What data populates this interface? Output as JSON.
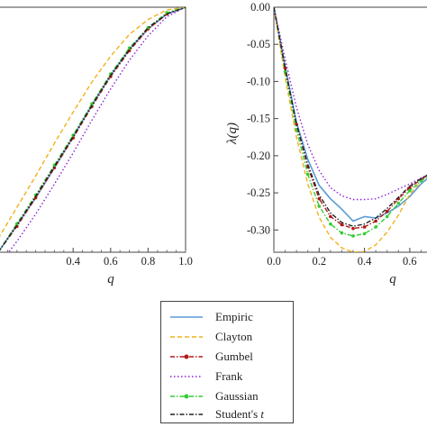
{
  "chart_data": [
    {
      "type": "line",
      "panel": "left",
      "xlabel": "q",
      "ylabel": "",
      "xlim": [
        0.0,
        1.0
      ],
      "ylim": [
        -0.18,
        0.0
      ],
      "xticks": [
        "0.4",
        "0.6",
        "0.8",
        "1.0"
      ],
      "series": [
        {
          "name": "Empiric",
          "color": "#5b9bd5",
          "style": "solid",
          "x": [
            0.0,
            0.1,
            0.2,
            0.3,
            0.4,
            0.5,
            0.6,
            0.7,
            0.8,
            0.9,
            1.0
          ],
          "y": [
            -0.18,
            -0.16,
            -0.14,
            -0.118,
            -0.095,
            -0.072,
            -0.05,
            -0.031,
            -0.016,
            -0.005,
            0.0
          ]
        },
        {
          "name": "Clayton",
          "color": "#f0b11b",
          "style": "dashed",
          "x": [
            0.0,
            0.1,
            0.2,
            0.3,
            0.4,
            0.5,
            0.6,
            0.7,
            0.8,
            0.9,
            1.0
          ],
          "y": [
            -0.17,
            -0.147,
            -0.124,
            -0.1,
            -0.077,
            -0.055,
            -0.036,
            -0.02,
            -0.009,
            -0.002,
            0.0
          ]
        },
        {
          "name": "Gumbel",
          "color": "#b01818",
          "style": "dash-dot-marker",
          "x": [
            0.0,
            0.1,
            0.2,
            0.3,
            0.4,
            0.5,
            0.6,
            0.7,
            0.8,
            0.9,
            1.0
          ],
          "y": [
            -0.18,
            -0.161,
            -0.14,
            -0.118,
            -0.096,
            -0.073,
            -0.051,
            -0.032,
            -0.016,
            -0.005,
            0.0
          ]
        },
        {
          "name": "Frank",
          "color": "#8b1fd6",
          "style": "dotted",
          "x": [
            0.0,
            0.1,
            0.2,
            0.3,
            0.4,
            0.5,
            0.6,
            0.7,
            0.8,
            0.9,
            1.0
          ],
          "y": [
            -0.19,
            -0.172,
            -0.152,
            -0.13,
            -0.107,
            -0.083,
            -0.06,
            -0.039,
            -0.021,
            -0.007,
            0.0
          ]
        },
        {
          "name": "Gaussian",
          "color": "#33cc33",
          "style": "dash-dot-marker",
          "x": [
            0.0,
            0.1,
            0.2,
            0.3,
            0.4,
            0.5,
            0.6,
            0.7,
            0.8,
            0.9,
            1.0
          ],
          "y": [
            -0.18,
            -0.159,
            -0.138,
            -0.116,
            -0.094,
            -0.071,
            -0.049,
            -0.03,
            -0.015,
            -0.004,
            0.0
          ]
        },
        {
          "name": "Student's t",
          "color": "#222222",
          "style": "dash-dot",
          "x": [
            0.0,
            0.1,
            0.2,
            0.3,
            0.4,
            0.5,
            0.6,
            0.7,
            0.8,
            0.9,
            1.0
          ],
          "y": [
            -0.18,
            -0.16,
            -0.139,
            -0.117,
            -0.095,
            -0.072,
            -0.05,
            -0.031,
            -0.015,
            -0.005,
            0.0
          ]
        }
      ]
    },
    {
      "type": "line",
      "panel": "right",
      "xlabel": "q",
      "ylabel": "λ(q)",
      "xlim": [
        0.0,
        0.7
      ],
      "ylim": [
        -0.33,
        0.0
      ],
      "yticks": [
        "0.00",
        "-0.05",
        "-0.10",
        "-0.15",
        "-0.20",
        "-0.25",
        "-0.30"
      ],
      "xticks": [
        "0.0",
        "0.2",
        "0.4",
        "0.6"
      ],
      "series": [
        {
          "name": "Empiric",
          "color": "#5b9bd5",
          "style": "solid",
          "x": [
            0.0,
            0.05,
            0.1,
            0.15,
            0.2,
            0.25,
            0.3,
            0.35,
            0.4,
            0.45,
            0.5,
            0.55,
            0.6,
            0.65,
            0.7
          ],
          "y": [
            0.0,
            -0.08,
            -0.155,
            -0.205,
            -0.24,
            -0.258,
            -0.272,
            -0.288,
            -0.282,
            -0.284,
            -0.277,
            -0.268,
            -0.255,
            -0.238,
            -0.225
          ]
        },
        {
          "name": "Clayton",
          "color": "#f0b11b",
          "style": "dashed",
          "x": [
            0.0,
            0.05,
            0.1,
            0.15,
            0.2,
            0.25,
            0.3,
            0.35,
            0.4,
            0.45,
            0.5,
            0.55,
            0.6,
            0.65,
            0.7
          ],
          "y": [
            0.0,
            -0.095,
            -0.175,
            -0.238,
            -0.283,
            -0.31,
            -0.324,
            -0.33,
            -0.329,
            -0.32,
            -0.303,
            -0.28,
            -0.252,
            -0.235,
            -0.222
          ]
        },
        {
          "name": "Gumbel",
          "color": "#b01818",
          "style": "dash-dot-marker",
          "x": [
            0.0,
            0.05,
            0.1,
            0.15,
            0.2,
            0.25,
            0.3,
            0.35,
            0.4,
            0.45,
            0.5,
            0.55,
            0.6,
            0.65,
            0.7
          ],
          "y": [
            0.0,
            -0.082,
            -0.158,
            -0.215,
            -0.258,
            -0.282,
            -0.293,
            -0.298,
            -0.296,
            -0.288,
            -0.275,
            -0.258,
            -0.243,
            -0.232,
            -0.222
          ]
        },
        {
          "name": "Frank",
          "color": "#8b1fd6",
          "style": "dotted",
          "x": [
            0.0,
            0.05,
            0.1,
            0.15,
            0.2,
            0.25,
            0.3,
            0.35,
            0.4,
            0.45,
            0.5,
            0.55,
            0.6,
            0.65,
            0.7
          ],
          "y": [
            0.0,
            -0.07,
            -0.135,
            -0.185,
            -0.22,
            -0.243,
            -0.254,
            -0.259,
            -0.259,
            -0.258,
            -0.252,
            -0.245,
            -0.238,
            -0.23,
            -0.222
          ]
        },
        {
          "name": "Gaussian",
          "color": "#33cc33",
          "style": "dash-dot-marker",
          "x": [
            0.0,
            0.05,
            0.1,
            0.15,
            0.2,
            0.25,
            0.3,
            0.35,
            0.4,
            0.45,
            0.5,
            0.55,
            0.6,
            0.65,
            0.7
          ],
          "y": [
            0.0,
            -0.087,
            -0.165,
            -0.225,
            -0.268,
            -0.292,
            -0.304,
            -0.308,
            -0.305,
            -0.296,
            -0.282,
            -0.264,
            -0.247,
            -0.234,
            -0.223
          ]
        },
        {
          "name": "Student's t",
          "color": "#222222",
          "style": "dash-dot",
          "x": [
            0.0,
            0.05,
            0.1,
            0.15,
            0.2,
            0.25,
            0.3,
            0.35,
            0.4,
            0.45,
            0.5,
            0.55,
            0.6,
            0.65,
            0.7
          ],
          "y": [
            0.0,
            -0.083,
            -0.157,
            -0.212,
            -0.253,
            -0.277,
            -0.29,
            -0.295,
            -0.292,
            -0.284,
            -0.271,
            -0.256,
            -0.241,
            -0.231,
            -0.222
          ]
        }
      ]
    }
  ],
  "legend": {
    "entries": [
      {
        "label": "Empiric",
        "color": "#5b9bd5",
        "style": "solid"
      },
      {
        "label": "Clayton",
        "color": "#f0b11b",
        "style": "dashed"
      },
      {
        "label": "Gumbel",
        "color": "#b01818",
        "style": "dash-dot-marker"
      },
      {
        "label": "Frank",
        "color": "#8b1fd6",
        "style": "dotted"
      },
      {
        "label": "Gaussian",
        "color": "#33cc33",
        "style": "dash-dot-marker"
      },
      {
        "label": "Student's ",
        "label_italic": "t",
        "color": "#222222",
        "style": "dash-dot"
      }
    ]
  }
}
